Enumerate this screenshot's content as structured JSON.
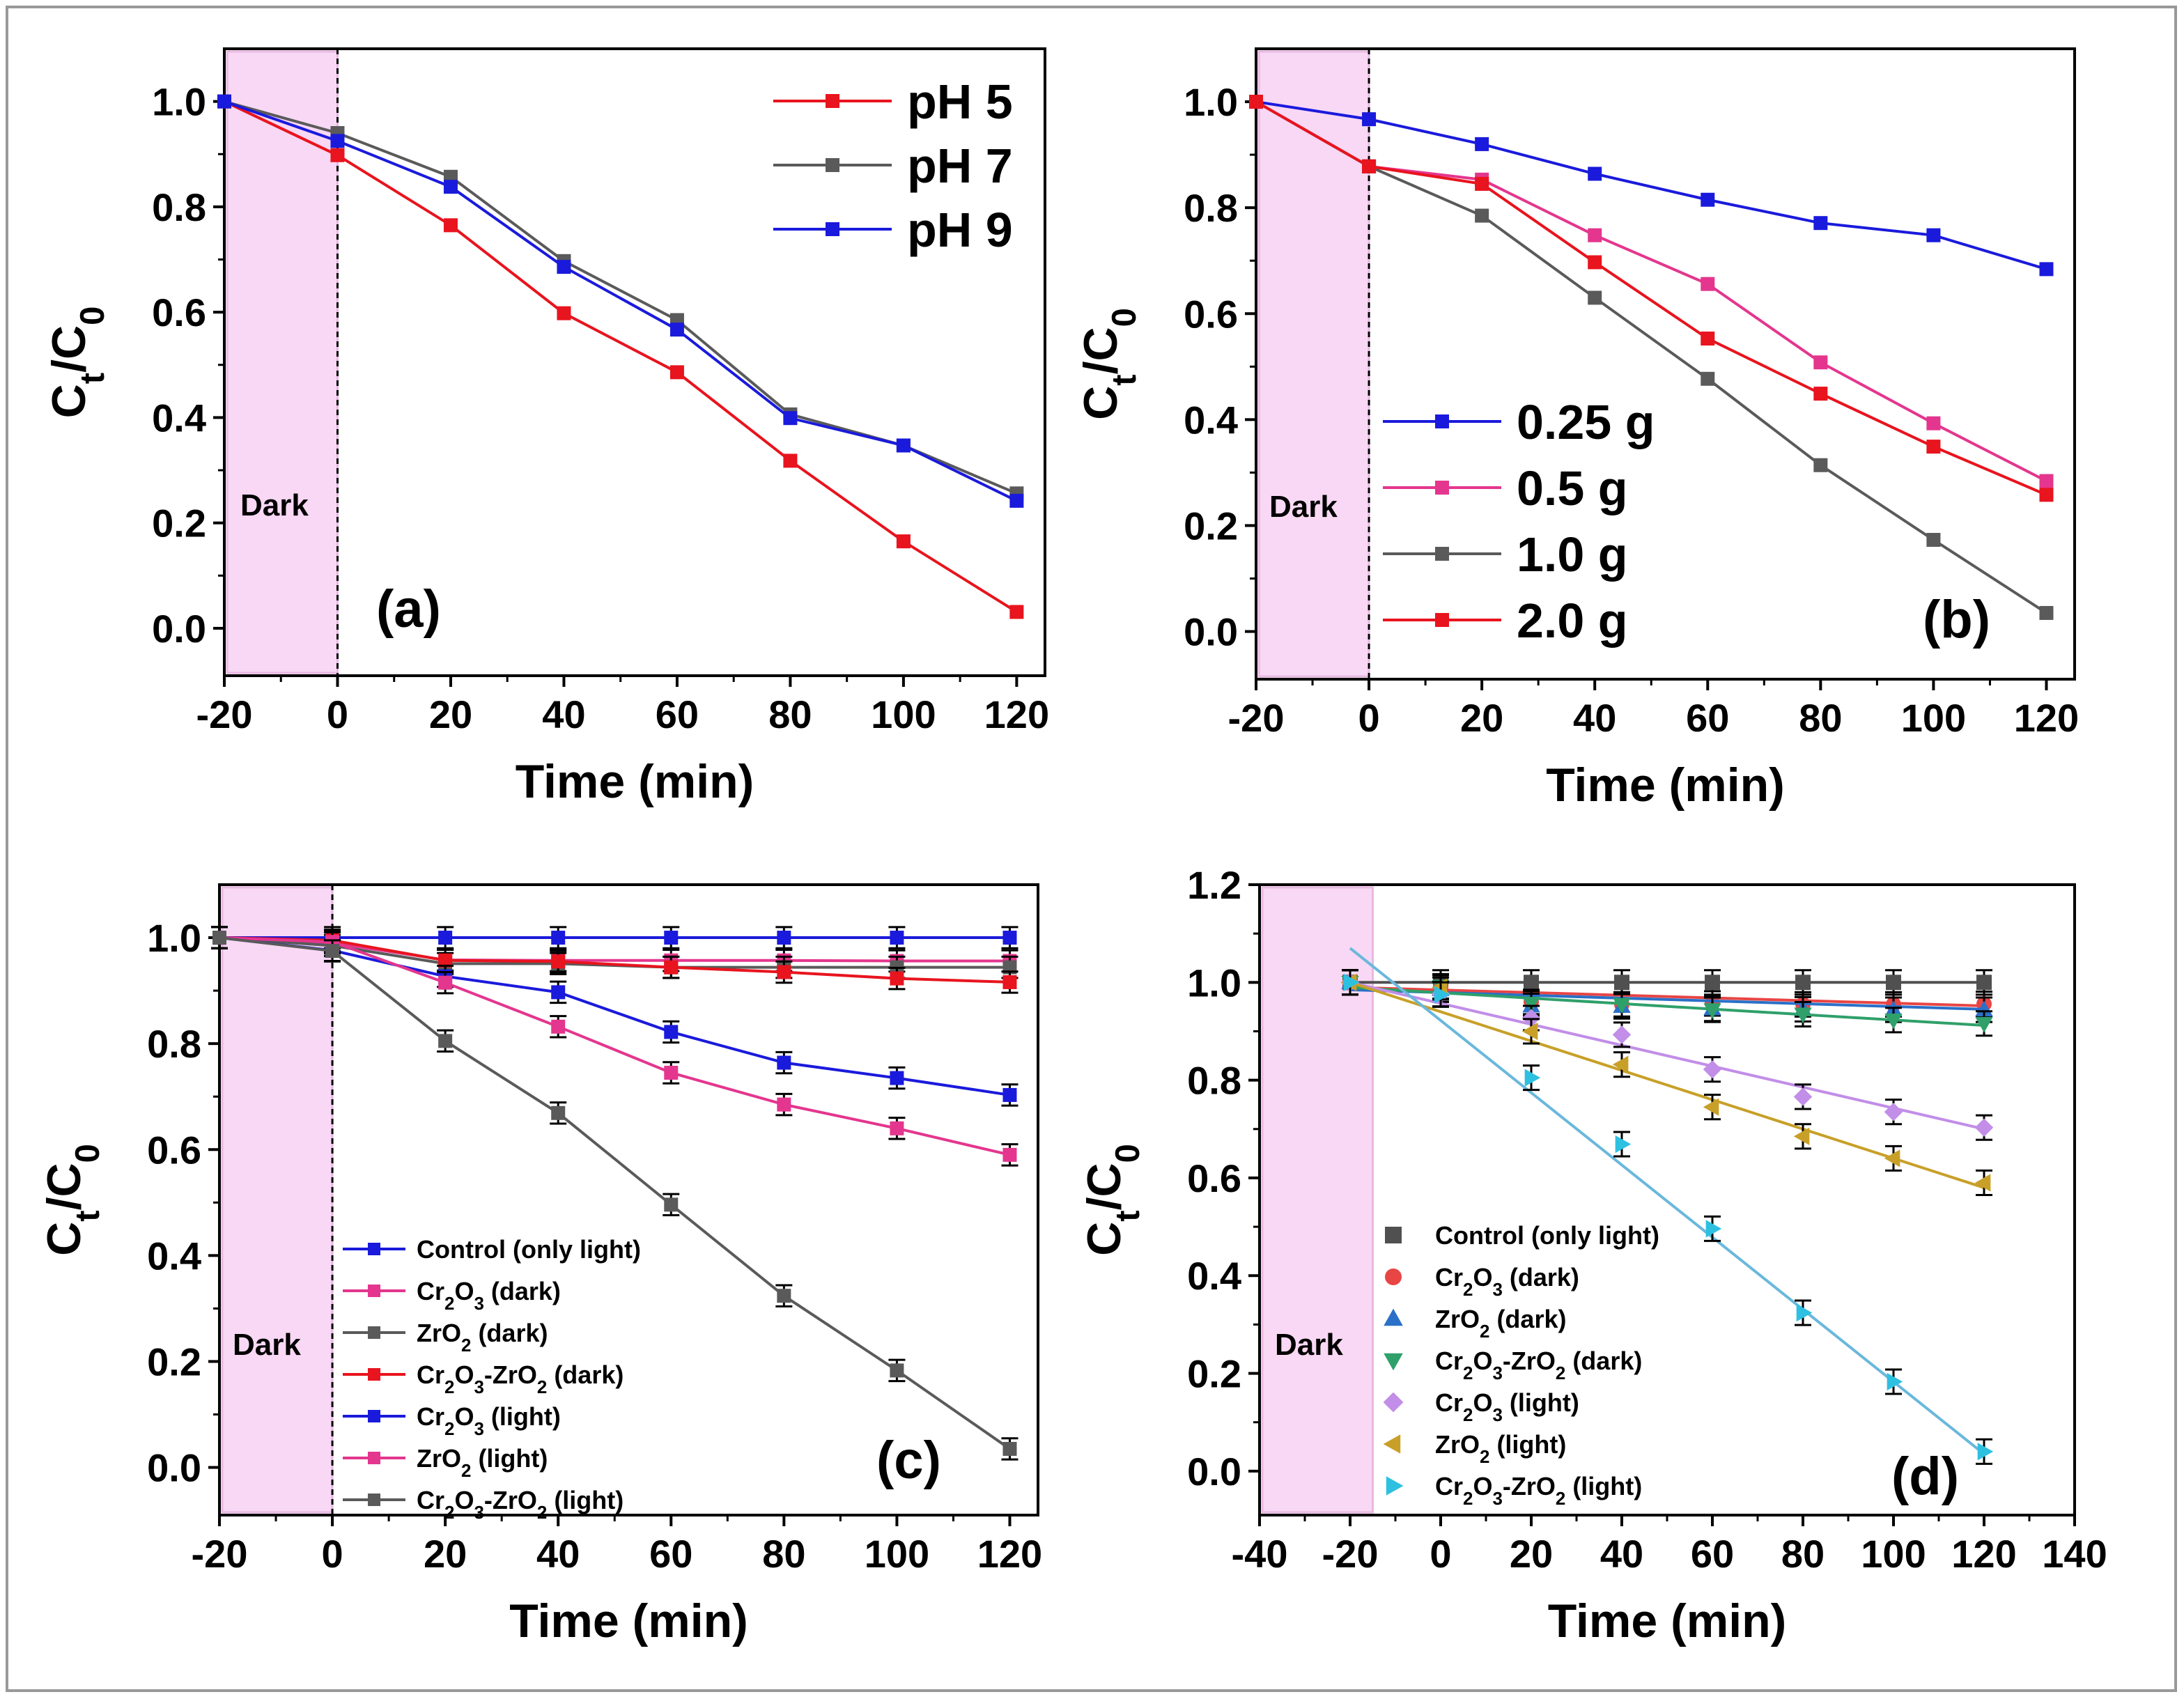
{
  "figure": {
    "border_color": "#999999"
  },
  "colors": {
    "red": "#e8141e",
    "gray": "#5a5a5a",
    "blue": "#1a1adc",
    "pink": "#e4368e",
    "dark_region": "#f8d8f4",
    "dark_edge": "#e9b8e2",
    "d_black": "#505050",
    "d_red": "#e84545",
    "d_blue": "#2a70c8",
    "d_green": "#2fa06a",
    "d_violet": "#c28ee8",
    "d_gold": "#c8a028",
    "d_cyan": "#2ec0e0",
    "d_fit": "#6ab8dc"
  },
  "chart_data": [
    {
      "id": "a",
      "type": "line",
      "panel_label": "(a)",
      "region_label": "Dark",
      "xlabel": "Time (min)",
      "ylabel": "Ct/C0",
      "xlim": [
        -20,
        125
      ],
      "ylim": [
        -0.09,
        1.1
      ],
      "xticks": [
        -20,
        0,
        20,
        40,
        60,
        80,
        100,
        120
      ],
      "yticks": [
        0.0,
        0.2,
        0.4,
        0.6,
        0.8,
        1.0
      ],
      "x": [
        -20,
        0,
        20,
        40,
        60,
        80,
        100,
        120
      ],
      "series": [
        {
          "name": "pH 5",
          "color": "#e8141e",
          "values": [
            1.0,
            0.898,
            0.765,
            0.598,
            0.486,
            0.318,
            0.165,
            0.031
          ]
        },
        {
          "name": "pH 7",
          "color": "#5a5a5a",
          "values": [
            1.0,
            0.94,
            0.857,
            0.697,
            0.585,
            0.406,
            0.347,
            0.256
          ]
        },
        {
          "name": "pH 9",
          "color": "#1a1adc",
          "values": [
            1.0,
            0.925,
            0.838,
            0.686,
            0.567,
            0.399,
            0.347,
            0.242
          ]
        }
      ]
    },
    {
      "id": "b",
      "type": "line",
      "panel_label": "(b)",
      "region_label": "Dark",
      "xlabel": "Time (min)",
      "ylabel": "Ct/C0",
      "xlim": [
        -20,
        125
      ],
      "ylim": [
        -0.09,
        1.1
      ],
      "xticks": [
        -20,
        0,
        20,
        40,
        60,
        80,
        100,
        120
      ],
      "yticks": [
        0.0,
        0.2,
        0.4,
        0.6,
        0.8,
        1.0
      ],
      "x": [
        -20,
        0,
        20,
        40,
        60,
        80,
        100,
        120
      ],
      "series": [
        {
          "name": "0.25 g",
          "color": "#1a1adc",
          "values": [
            1.0,
            0.967,
            0.92,
            0.864,
            0.815,
            0.771,
            0.748,
            0.684
          ]
        },
        {
          "name": "0.5 g",
          "color": "#e4368e",
          "values": [
            1.0,
            0.878,
            0.853,
            0.748,
            0.656,
            0.508,
            0.393,
            0.284
          ]
        },
        {
          "name": "1.0 g",
          "color": "#5a5a5a",
          "values": [
            1.0,
            0.878,
            0.785,
            0.63,
            0.477,
            0.314,
            0.173,
            0.035
          ]
        },
        {
          "name": "2.0 g",
          "color": "#e8141e",
          "values": [
            1.0,
            0.878,
            0.845,
            0.697,
            0.553,
            0.449,
            0.349,
            0.258
          ]
        }
      ]
    },
    {
      "id": "c",
      "type": "line",
      "panel_label": "(c)",
      "region_label": "Dark",
      "xlabel": "Time (min)",
      "ylabel": "Ct/C0",
      "xlim": [
        -20,
        125
      ],
      "ylim": [
        -0.09,
        1.1
      ],
      "xticks": [
        -20,
        0,
        20,
        40,
        60,
        80,
        100,
        120
      ],
      "yticks": [
        0.0,
        0.2,
        0.4,
        0.6,
        0.8,
        1.0
      ],
      "x": [
        -20,
        0,
        20,
        40,
        60,
        80,
        100,
        120
      ],
      "error": 0.02,
      "series": [
        {
          "name": "Control (only light)",
          "color": "#1a1adc",
          "values": [
            1.0,
            1.0,
            1.0,
            1.0,
            1.0,
            1.0,
            1.0,
            1.0
          ]
        },
        {
          "name": "Cr2O3 (dark)",
          "color": "#e4368e",
          "values": [
            1.0,
            0.99,
            0.958,
            0.957,
            0.957,
            0.957,
            0.956,
            0.956
          ]
        },
        {
          "name": "ZrO2 (dark)",
          "color": "#5a5a5a",
          "values": [
            1.0,
            0.985,
            0.951,
            0.951,
            0.944,
            0.944,
            0.944,
            0.944
          ]
        },
        {
          "name": "Cr2O3-ZrO2 (dark)",
          "color": "#e8141e",
          "values": [
            1.0,
            0.995,
            0.957,
            0.955,
            0.944,
            0.935,
            0.923,
            0.916
          ]
        },
        {
          "name": "Cr2O3 (light)",
          "color": "#1a1adc",
          "values": [
            1.0,
            0.976,
            0.927,
            0.897,
            0.822,
            0.764,
            0.735,
            0.703
          ]
        },
        {
          "name": "ZrO2 (light)",
          "color": "#e4368e",
          "values": [
            1.0,
            0.992,
            0.915,
            0.832,
            0.745,
            0.685,
            0.64,
            0.59
          ]
        },
        {
          "name": "Cr2O3-ZrO2 (light)",
          "color": "#5a5a5a",
          "values": [
            1.0,
            0.975,
            0.805,
            0.669,
            0.496,
            0.324,
            0.183,
            0.035
          ]
        }
      ]
    },
    {
      "id": "d",
      "type": "scatter",
      "panel_label": "(d)",
      "region_label": "Dark",
      "xlabel": "Time (min)",
      "ylabel": "Ct/C0",
      "xlim": [
        -40,
        140
      ],
      "ylim": [
        -0.09,
        1.2
      ],
      "xticks": [
        -40,
        -20,
        0,
        20,
        40,
        60,
        80,
        100,
        120,
        140
      ],
      "yticks": [
        0.0,
        0.2,
        0.4,
        0.6,
        0.8,
        1.0,
        1.2
      ],
      "x": [
        -20,
        0,
        20,
        40,
        60,
        80,
        100,
        120
      ],
      "error": 0.025,
      "series": [
        {
          "name": "Control (only light)",
          "color": "#505050",
          "marker": "square",
          "values": [
            1.0,
            1.0,
            1.0,
            1.0,
            1.0,
            1.0,
            1.0,
            1.0
          ],
          "fit": [
            1.0,
            1.0
          ]
        },
        {
          "name": "Cr2O3 (dark)",
          "color": "#e84545",
          "marker": "circle",
          "values": [
            1.0,
            0.99,
            0.96,
            0.955,
            0.957,
            0.955,
            0.955,
            0.956
          ],
          "fit": [
            0.99,
            0.952
          ]
        },
        {
          "name": "ZrO2 (dark)",
          "color": "#2a70c8",
          "marker": "triangle-up",
          "values": [
            1.0,
            0.985,
            0.952,
            0.951,
            0.946,
            0.945,
            0.944,
            0.944
          ],
          "fit": [
            0.985,
            0.945
          ]
        },
        {
          "name": "Cr2O3-ZrO2 (dark)",
          "color": "#2fa06a",
          "marker": "triangle-down",
          "values": [
            1.0,
            0.992,
            0.957,
            0.955,
            0.944,
            0.935,
            0.923,
            0.916
          ],
          "fit": [
            0.99,
            0.912
          ]
        },
        {
          "name": "Cr2O3 (light)",
          "color": "#c28ee8",
          "marker": "diamond",
          "values": [
            1.0,
            0.976,
            0.927,
            0.893,
            0.822,
            0.766,
            0.735,
            0.703
          ],
          "fit": [
            1.0,
            0.7
          ]
        },
        {
          "name": "ZrO2 (light)",
          "color": "#c8a028",
          "marker": "triangle-left",
          "values": [
            1.0,
            0.99,
            0.9,
            0.832,
            0.745,
            0.685,
            0.64,
            0.59
          ],
          "fit": [
            1.0,
            0.58
          ]
        },
        {
          "name": "Cr2O3-ZrO2 (light)",
          "color": "#2ec0e0",
          "marker": "triangle-right",
          "values": [
            1.0,
            0.975,
            0.805,
            0.669,
            0.496,
            0.324,
            0.183,
            0.04
          ],
          "fit": [
            1.07,
            0.035
          ]
        }
      ]
    }
  ]
}
